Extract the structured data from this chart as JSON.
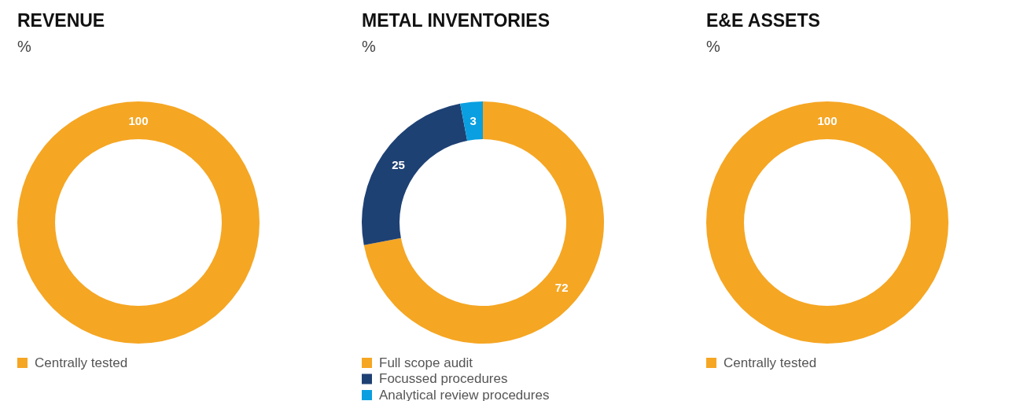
{
  "chart_data": [
    {
      "type": "donut",
      "title": "REVENUE",
      "subtitle": "%",
      "categories": [
        "Centrally tested"
      ],
      "values": [
        100
      ],
      "colors": [
        "#f5a623"
      ],
      "data_labels": true,
      "legend": "bottom"
    },
    {
      "type": "donut",
      "title": "METAL INVENTORIES",
      "subtitle": "%",
      "categories": [
        "Full scope audit",
        "Focussed procedures",
        "Analytical review procedures"
      ],
      "values": [
        72,
        25,
        3
      ],
      "colors": [
        "#f5a623",
        "#1e4174",
        "#0a9fe0"
      ],
      "data_labels": true,
      "legend": "bottom"
    },
    {
      "type": "donut",
      "title": "E&E ASSETS",
      "subtitle": "%",
      "categories": [
        "Centrally tested"
      ],
      "values": [
        100
      ],
      "colors": [
        "#f5a623"
      ],
      "data_labels": true,
      "legend": "bottom"
    }
  ]
}
